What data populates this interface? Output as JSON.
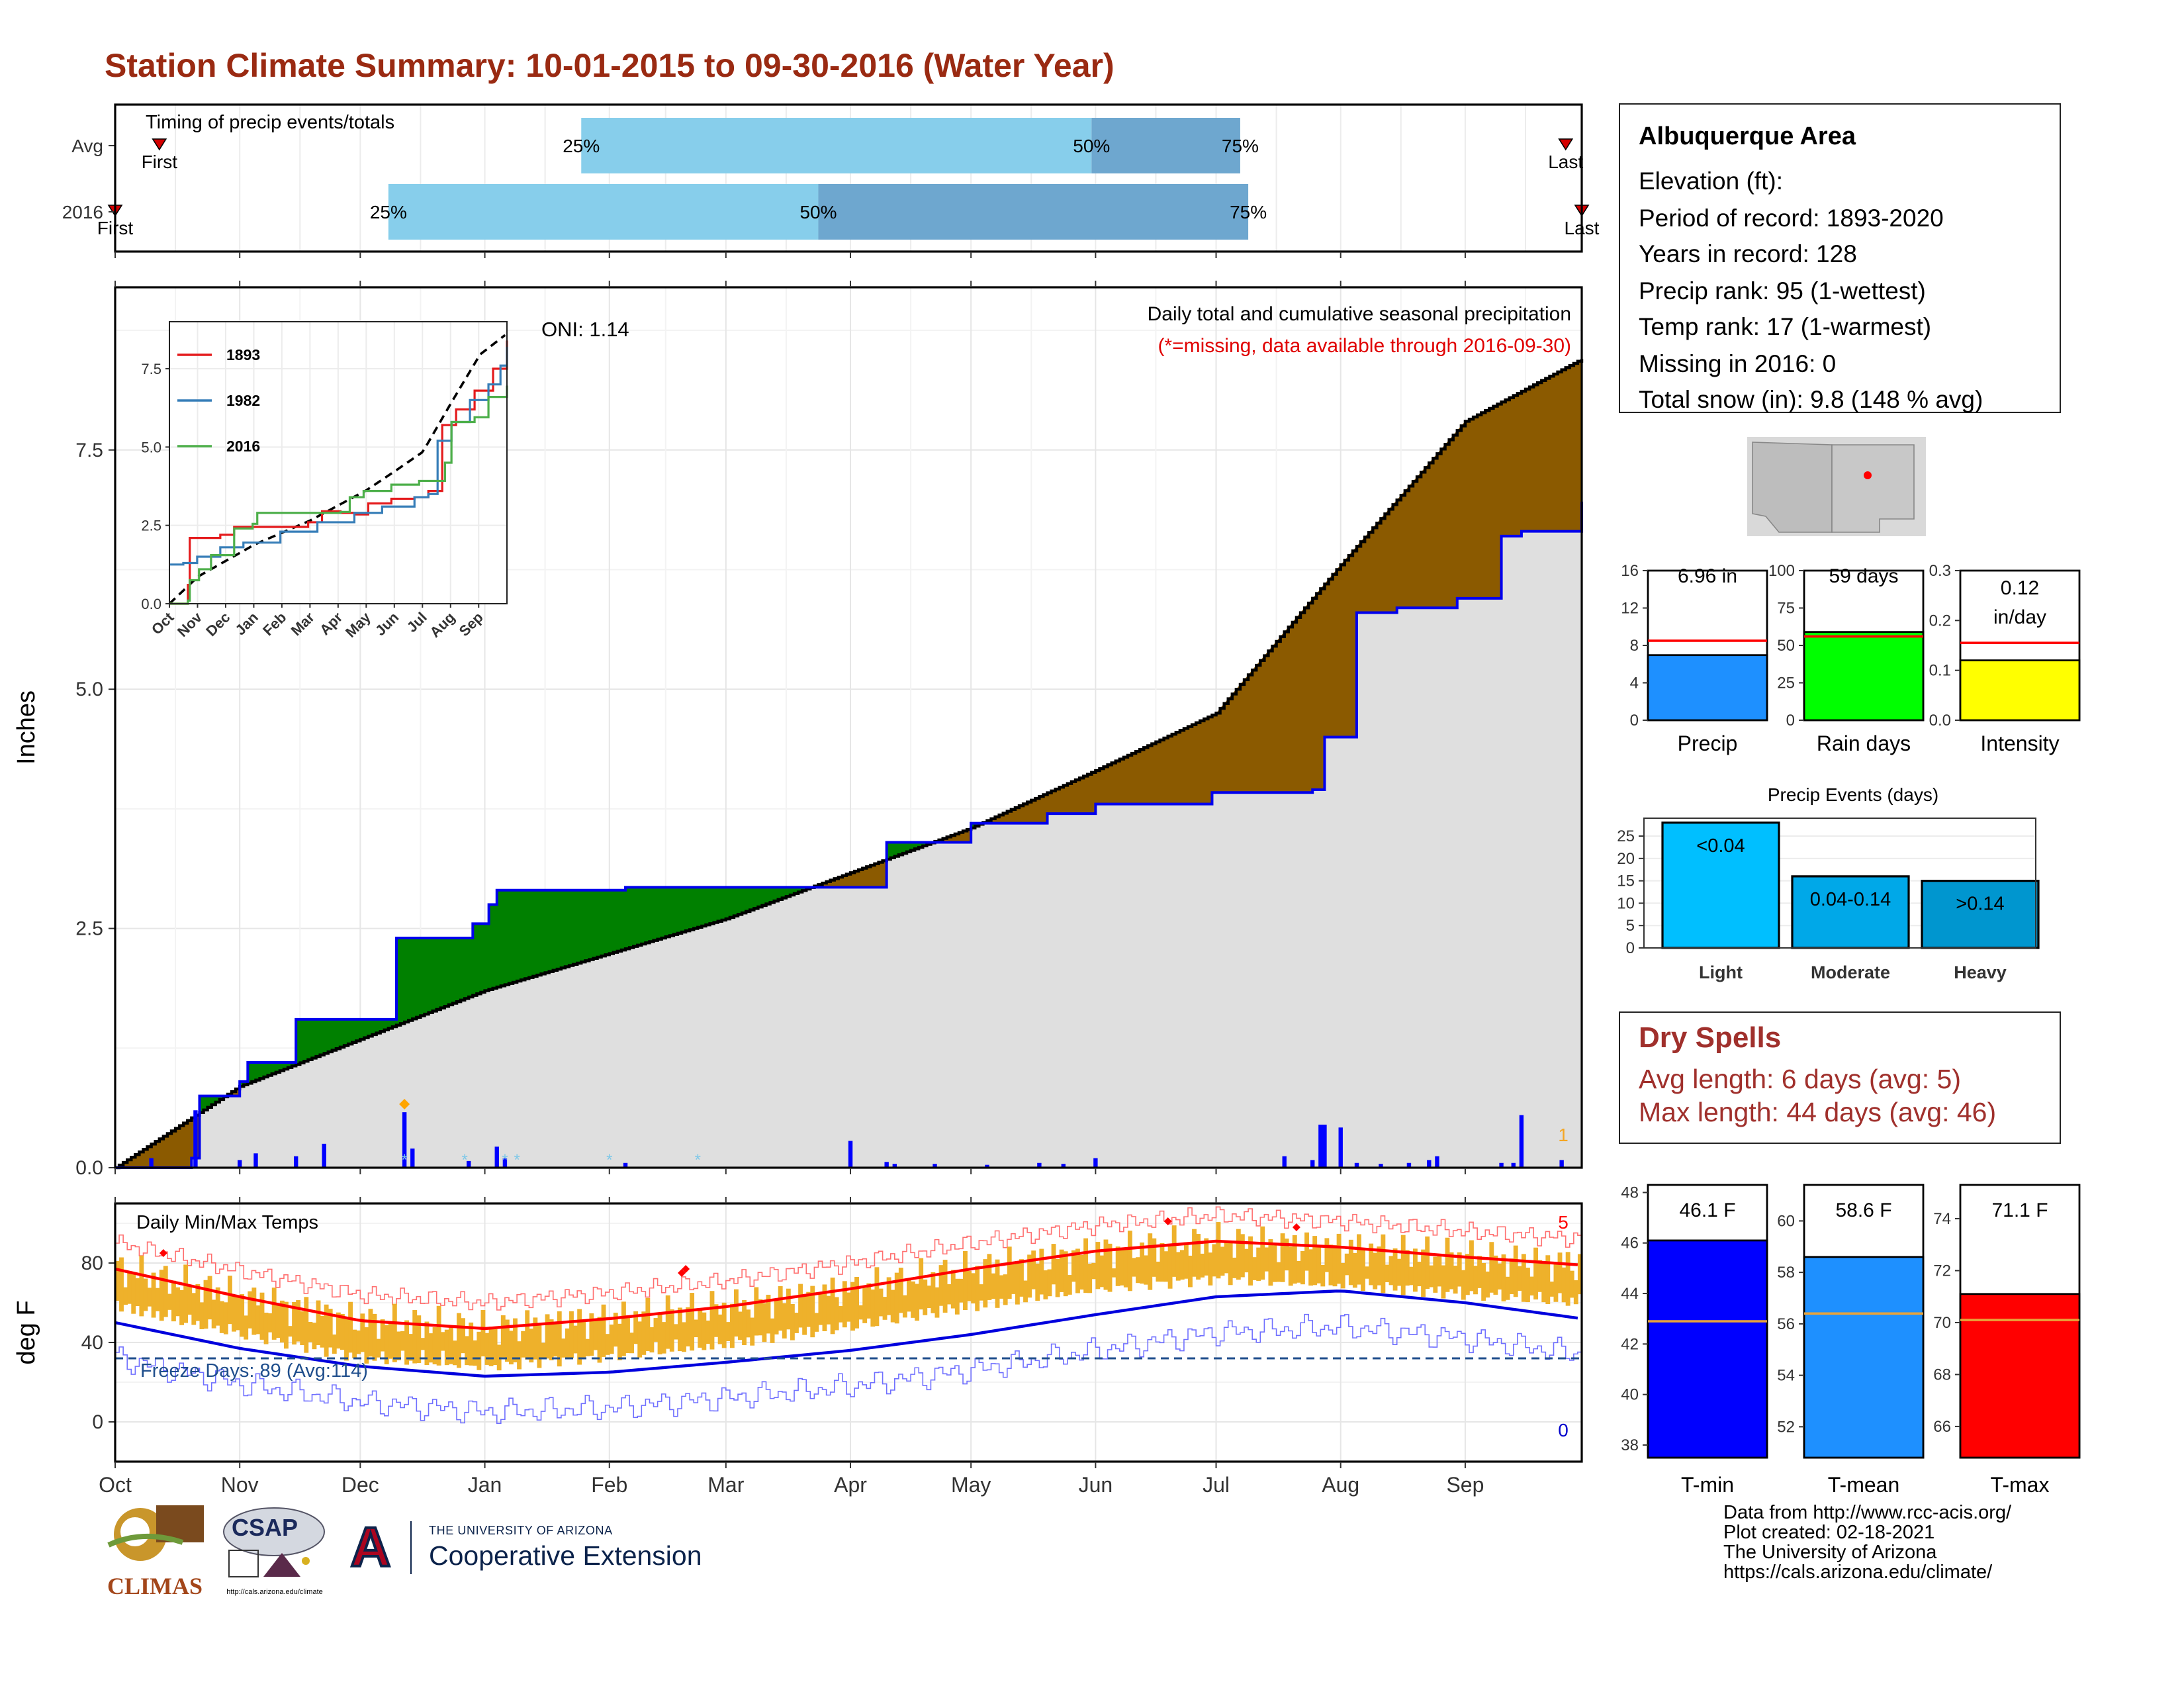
{
  "title": "Station Climate Summary: 10-01-2015 to 09-30-2016 (Water Year)",
  "timing": {
    "label": "Timing of precip events/totals",
    "rows": [
      "Avg",
      "2016"
    ],
    "pct_labels": [
      "25%",
      "50%",
      "75%"
    ],
    "avg": {
      "first": "First",
      "last": "Last"
    },
    "y2016": {
      "first": "First",
      "last": "Last"
    }
  },
  "precip_panel": {
    "ylabel": "Inches",
    "yticks": [
      "0.0",
      "2.5",
      "5.0",
      "7.5"
    ],
    "oni": "ONI: 1.14",
    "subtitle": "Daily total and cumulative seasonal precipitation",
    "missing_note": "(*=missing, data available through 2016-09-30)",
    "corner_value": "1",
    "inset": {
      "yticks": [
        "0.0",
        "2.5",
        "5.0",
        "7.5"
      ],
      "xticks": [
        "Oct",
        "Nov",
        "Dec",
        "Jan",
        "Feb",
        "Mar",
        "Apr",
        "May",
        "Jun",
        "Jul",
        "Aug",
        "Sep"
      ],
      "legend": [
        "1893",
        "1982",
        "2016"
      ]
    }
  },
  "temp_panel": {
    "label": "Daily Min/Max Temps",
    "ylabel": "deg F",
    "yticks": [
      "0",
      "40",
      "80"
    ],
    "freeze": "Freeze Days: 89 (Avg:114)",
    "max_count": "5",
    "min_count": "0"
  },
  "months": [
    "Oct",
    "Nov",
    "Dec",
    "Jan",
    "Feb",
    "Mar",
    "Apr",
    "May",
    "Jun",
    "Jul",
    "Aug",
    "Sep"
  ],
  "station": {
    "name": "Albuquerque Area",
    "lines": [
      "Elevation (ft):",
      "Period of record: 1893-2020",
      "Years in record: 128",
      "Precip rank: 95 (1-wettest)",
      "Temp rank: 17 (1-warmest)",
      "Missing in 2016: 0",
      "Total snow (in): 9.8 (148 % avg)"
    ]
  },
  "summary_bars": [
    {
      "name": "Precip",
      "value_label": "6.96 in",
      "value": 6.96,
      "avg": 8.5,
      "ymax": 16,
      "yticks": [
        "0",
        "4",
        "8",
        "12",
        "16"
      ],
      "color": "#1e90ff"
    },
    {
      "name": "Rain days",
      "value_label": "59 days",
      "value": 59,
      "avg": 56,
      "ymax": 100,
      "yticks": [
        "0",
        "25",
        "50",
        "75",
        "100"
      ],
      "color": "#00ff00"
    },
    {
      "name": "Intensity",
      "value_label": "0.12 in/day",
      "value": 0.12,
      "avg": 0.155,
      "ymax": 0.3,
      "yticks": [
        "0.0",
        "0.1",
        "0.2",
        "0.3"
      ],
      "color": "#ffff00"
    }
  ],
  "events": {
    "title": "Precip Events (days)",
    "yticks": [
      "0",
      "5",
      "10",
      "15",
      "20",
      "25"
    ],
    "bars": [
      {
        "name": "Light",
        "label": "<0.04",
        "value": 28,
        "color": "#00bfff"
      },
      {
        "name": "Moderate",
        "label": "0.04-0.14",
        "value": 16,
        "color": "#00a8e8"
      },
      {
        "name": "Heavy",
        "label": ">0.14",
        "value": 15,
        "color": "#0096cf"
      }
    ]
  },
  "dry_spells": {
    "title": "Dry Spells",
    "avg_line": "Avg length: 6 days (avg: 5)",
    "max_line": "Max length: 44 days (avg: 46)"
  },
  "temp_bars": [
    {
      "name": "T-min",
      "value_label": "46.1 F",
      "value": 46.1,
      "avg": 42.9,
      "ymin": 37.5,
      "ymax": 48.3,
      "yticks": [
        "38",
        "40",
        "42",
        "44",
        "46",
        "48"
      ],
      "color": "#0000ff"
    },
    {
      "name": "T-mean",
      "value_label": "58.6 F",
      "value": 58.6,
      "avg": 56.4,
      "ymin": 50.8,
      "ymax": 61.4,
      "yticks": [
        "52",
        "54",
        "56",
        "58",
        "60"
      ],
      "color": "#1e90ff"
    },
    {
      "name": "T-max",
      "value_label": "71.1 F",
      "value": 71.1,
      "avg": 70.1,
      "ymin": 64.8,
      "ymax": 75.3,
      "yticks": [
        "66",
        "68",
        "70",
        "72",
        "74"
      ],
      "color": "#ff0000"
    }
  ],
  "credits": [
    "Data from http://www.rcc-acis.org/",
    "Plot created: 02-18-2021",
    "The University of Arizona",
    "https://cals.arizona.edu/climate/"
  ],
  "logos": {
    "climas": "CLIMAS",
    "csap": "CSAP",
    "csap_url": "http://cals.arizona.edu/climate",
    "ua_top": "THE UNIVERSITY OF ARIZONA",
    "ua_main": "Cooperative Extension"
  },
  "chart_data": {
    "type": "area",
    "title": "Station Climate Summary: 10-01-2015 to 09-30-2016 (Water Year)",
    "ylabel": "Inches",
    "ylim": [
      0,
      9.2
    ],
    "x_axis": "date",
    "series": [
      {
        "name": "2016",
        "x": [
          "2015-10-01",
          "2015-10-20",
          "2015-10-22",
          "2015-11-01",
          "2015-11-03",
          "2015-11-15",
          "2015-12-10",
          "2015-12-12",
          "2015-12-29",
          "2016-01-02",
          "2016-01-04",
          "2016-02-05",
          "2016-04-01",
          "2016-04-10",
          "2016-05-01",
          "2016-05-20",
          "2016-06-01",
          "2016-06-30",
          "2016-07-25",
          "2016-07-28",
          "2016-08-05",
          "2016-08-15",
          "2016-08-30",
          "2016-09-10",
          "2016-09-15",
          "2016-09-30"
        ],
        "values": [
          0.0,
          0.1,
          0.75,
          0.9,
          1.1,
          1.55,
          2.4,
          2.4,
          2.55,
          2.75,
          2.9,
          2.93,
          2.93,
          3.4,
          3.6,
          3.7,
          3.8,
          3.92,
          3.95,
          4.5,
          5.8,
          5.85,
          5.95,
          6.6,
          6.65,
          6.96
        ]
      },
      {
        "name": "Avg",
        "x": [
          "2015-10-01",
          "2015-11-01",
          "2016-01-01",
          "2016-03-01",
          "2016-05-01",
          "2016-06-01",
          "2016-07-01",
          "2016-08-01",
          "2016-09-01",
          "2016-09-30"
        ],
        "values": [
          0.0,
          0.85,
          1.85,
          2.6,
          3.55,
          4.15,
          4.75,
          6.3,
          7.8,
          8.45
        ]
      }
    ],
    "daily_bars": [
      {
        "x": "2015-10-10",
        "v": 0.1
      },
      {
        "x": "2015-10-21",
        "v": 0.6
      },
      {
        "x": "2015-11-01",
        "v": 0.08
      },
      {
        "x": "2015-11-05",
        "v": 0.15
      },
      {
        "x": "2015-11-15",
        "v": 0.12
      },
      {
        "x": "2015-11-22",
        "v": 0.25
      },
      {
        "x": "2015-12-12",
        "v": 0.58
      },
      {
        "x": "2015-12-14",
        "v": 0.2
      },
      {
        "x": "2015-12-28",
        "v": 0.07
      },
      {
        "x": "2016-01-04",
        "v": 0.22
      },
      {
        "x": "2016-01-06",
        "v": 0.1
      },
      {
        "x": "2016-02-05",
        "v": 0.05
      },
      {
        "x": "2016-04-01",
        "v": 0.28
      },
      {
        "x": "2016-04-10",
        "v": 0.06
      },
      {
        "x": "2016-04-12",
        "v": 0.04
      },
      {
        "x": "2016-04-22",
        "v": 0.04
      },
      {
        "x": "2016-05-05",
        "v": 0.03
      },
      {
        "x": "2016-05-18",
        "v": 0.05
      },
      {
        "x": "2016-05-24",
        "v": 0.04
      },
      {
        "x": "2016-06-01",
        "v": 0.1
      },
      {
        "x": "2016-07-18",
        "v": 0.12
      },
      {
        "x": "2016-07-25",
        "v": 0.08
      },
      {
        "x": "2016-07-27",
        "v": 0.45
      },
      {
        "x": "2016-07-28",
        "v": 0.45
      },
      {
        "x": "2016-08-01",
        "v": 0.42
      },
      {
        "x": "2016-08-05",
        "v": 0.05
      },
      {
        "x": "2016-08-11",
        "v": 0.04
      },
      {
        "x": "2016-08-18",
        "v": 0.05
      },
      {
        "x": "2016-08-23",
        "v": 0.08
      },
      {
        "x": "2016-08-25",
        "v": 0.12
      },
      {
        "x": "2016-09-10",
        "v": 0.05
      },
      {
        "x": "2016-09-13",
        "v": 0.05
      },
      {
        "x": "2016-09-15",
        "v": 0.55
      },
      {
        "x": "2016-09-25",
        "v": 0.08
      }
    ],
    "inset_series": [
      {
        "name": "1893",
        "color": "#e41a1c"
      },
      {
        "name": "1982",
        "color": "#377eb8"
      },
      {
        "name": "2016",
        "color": "#4daf4a"
      }
    ],
    "temps": {
      "ylabel": "deg F",
      "ylim": [
        -20,
        110
      ],
      "avg_max_x": [
        "2015-10-01",
        "2015-11-01",
        "2015-12-01",
        "2016-01-01",
        "2016-02-01",
        "2016-03-01",
        "2016-04-01",
        "2016-05-01",
        "2016-06-01",
        "2016-07-01",
        "2016-08-01",
        "2016-09-01",
        "2016-09-30"
      ],
      "avg_max": [
        77,
        63,
        51,
        47,
        52,
        58,
        67,
        77,
        86,
        91,
        88,
        83,
        79
      ],
      "avg_min": [
        50,
        37,
        28,
        23,
        25,
        30,
        36,
        44,
        54,
        63,
        66,
        60,
        52
      ],
      "freeze_line": 32
    }
  }
}
